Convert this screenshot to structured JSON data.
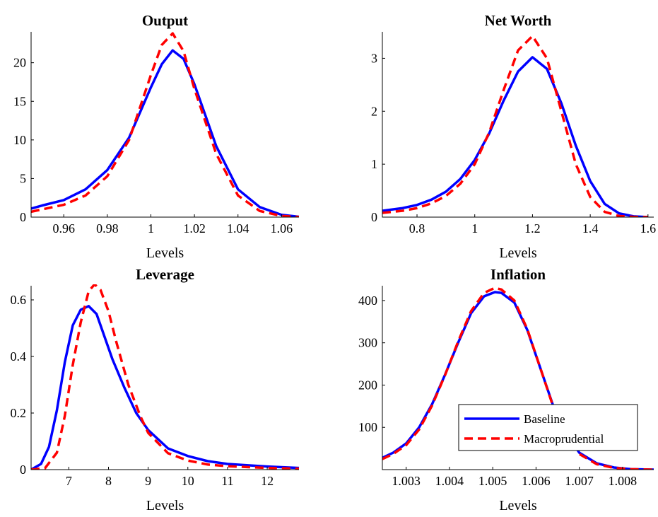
{
  "colors": {
    "baseline": "#0000FF",
    "macroprudential": "#FF0000"
  },
  "legend": {
    "entries": [
      "Baseline",
      "Macroprudential"
    ],
    "placement": "lower-right of Inflation panel"
  },
  "chart_data": [
    {
      "type": "line",
      "title": "Output",
      "xlabel": "Levels",
      "xlim": [
        0.945,
        1.068
      ],
      "ylim": [
        0,
        24
      ],
      "xticks": [
        0.96,
        0.98,
        1,
        1.02,
        1.04,
        1.06
      ],
      "xtick_labels": [
        "0.96",
        "0.98",
        "1",
        "1.02",
        "1.04",
        "1.06"
      ],
      "yticks": [
        0,
        5,
        10,
        15,
        20
      ],
      "ytick_labels": [
        "0",
        "5",
        "10",
        "15",
        "20"
      ],
      "series": [
        {
          "name": "Baseline",
          "x": [
            0.945,
            0.95,
            0.96,
            0.97,
            0.98,
            0.99,
            1.0,
            1.005,
            1.01,
            1.015,
            1.02,
            1.03,
            1.04,
            1.05,
            1.06,
            1.068
          ],
          "y": [
            1.1,
            1.5,
            2.2,
            3.6,
            6.1,
            10.3,
            16.8,
            19.8,
            21.6,
            20.5,
            17.2,
            9.2,
            3.6,
            1.3,
            0.3,
            0.05
          ]
        },
        {
          "name": "Macroprudential",
          "x": [
            0.945,
            0.95,
            0.96,
            0.97,
            0.98,
            0.99,
            1.0,
            1.005,
            1.01,
            1.015,
            1.02,
            1.03,
            1.04,
            1.05,
            1.06,
            1.068
          ],
          "y": [
            0.7,
            1.0,
            1.6,
            2.8,
            5.3,
            10.0,
            18.4,
            22.3,
            23.8,
            21.5,
            16.6,
            8.2,
            2.8,
            0.8,
            0.15,
            0.02
          ]
        }
      ]
    },
    {
      "type": "line",
      "title": "Net Worth",
      "xlabel": "Levels",
      "xlim": [
        0.68,
        1.62
      ],
      "ylim": [
        0,
        3.5
      ],
      "xticks": [
        0.8,
        1,
        1.2,
        1.4,
        1.6
      ],
      "xtick_labels": [
        "0.8",
        "1",
        "1.2",
        "1.4",
        "1.6"
      ],
      "yticks": [
        0,
        1,
        2,
        3
      ],
      "ytick_labels": [
        "0",
        "1",
        "2",
        "3"
      ],
      "series": [
        {
          "name": "Baseline",
          "x": [
            0.68,
            0.75,
            0.8,
            0.85,
            0.9,
            0.95,
            1.0,
            1.05,
            1.1,
            1.15,
            1.2,
            1.25,
            1.3,
            1.35,
            1.4,
            1.45,
            1.5,
            1.55,
            1.6
          ],
          "y": [
            0.12,
            0.17,
            0.23,
            0.33,
            0.48,
            0.72,
            1.08,
            1.58,
            2.2,
            2.75,
            3.02,
            2.8,
            2.15,
            1.35,
            0.68,
            0.25,
            0.07,
            0.015,
            0.0
          ]
        },
        {
          "name": "Macroprudential",
          "x": [
            0.68,
            0.75,
            0.8,
            0.85,
            0.9,
            0.95,
            1.0,
            1.05,
            1.1,
            1.15,
            1.2,
            1.25,
            1.3,
            1.35,
            1.4,
            1.45,
            1.5,
            1.55,
            1.6
          ],
          "y": [
            0.08,
            0.12,
            0.17,
            0.26,
            0.4,
            0.63,
            1.0,
            1.6,
            2.4,
            3.15,
            3.42,
            3.0,
            2.0,
            1.0,
            0.38,
            0.1,
            0.02,
            0.005,
            0.0
          ]
        }
      ]
    },
    {
      "type": "line",
      "title": "Leverage",
      "xlabel": "Levels",
      "xlim": [
        6.05,
        12.8
      ],
      "ylim": [
        0,
        0.65
      ],
      "xticks": [
        7,
        8,
        9,
        10,
        11,
        12
      ],
      "xtick_labels": [
        "7",
        "8",
        "9",
        "10",
        "11",
        "12"
      ],
      "yticks": [
        0,
        0.2,
        0.4,
        0.6
      ],
      "ytick_labels": [
        "0",
        "0.2",
        "0.4",
        "0.6"
      ],
      "series": [
        {
          "name": "Baseline",
          "x": [
            6.05,
            6.3,
            6.5,
            6.7,
            6.9,
            7.1,
            7.3,
            7.5,
            7.7,
            7.9,
            8.1,
            8.4,
            8.7,
            9.0,
            9.5,
            10.0,
            10.5,
            11.0,
            12.0,
            12.8
          ],
          "y": [
            0.0,
            0.02,
            0.08,
            0.21,
            0.38,
            0.51,
            0.565,
            0.578,
            0.55,
            0.47,
            0.39,
            0.29,
            0.2,
            0.14,
            0.075,
            0.048,
            0.03,
            0.02,
            0.011,
            0.006
          ]
        },
        {
          "name": "Macroprudential",
          "x": [
            6.05,
            6.4,
            6.7,
            6.9,
            7.1,
            7.3,
            7.5,
            7.65,
            7.8,
            8.0,
            8.2,
            8.5,
            8.8,
            9.0,
            9.5,
            10.0,
            10.5,
            11.0,
            12.0,
            12.8
          ],
          "y": [
            0.0,
            0.005,
            0.06,
            0.19,
            0.37,
            0.52,
            0.63,
            0.655,
            0.635,
            0.56,
            0.45,
            0.3,
            0.19,
            0.13,
            0.058,
            0.032,
            0.018,
            0.012,
            0.006,
            0.003
          ]
        }
      ]
    },
    {
      "type": "line",
      "title": "Inflation",
      "xlabel": "Levels",
      "xlim": [
        1.00245,
        1.00872
      ],
      "ylim": [
        0,
        435
      ],
      "xticks": [
        1.003,
        1.004,
        1.005,
        1.006,
        1.007,
        1.008
      ],
      "xtick_labels": [
        "1.003",
        "1.004",
        "1.005",
        "1.006",
        "1.007",
        "1.008"
      ],
      "yticks": [
        100,
        200,
        300,
        400
      ],
      "ytick_labels": [
        "100",
        "200",
        "300",
        "400"
      ],
      "series": [
        {
          "name": "Baseline",
          "x": [
            1.00245,
            1.0027,
            1.003,
            1.0033,
            1.0036,
            1.0039,
            1.0042,
            1.0045,
            1.0048,
            1.00505,
            1.0052,
            1.0055,
            1.0058,
            1.0061,
            1.0064,
            1.0067,
            1.007,
            1.0074,
            1.0078,
            1.0082,
            1.00872
          ],
          "y": [
            28,
            40,
            62,
            100,
            155,
            225,
            300,
            370,
            410,
            420,
            418,
            395,
            330,
            240,
            150,
            85,
            40,
            15,
            5,
            1,
            0
          ]
        },
        {
          "name": "Macroprudential",
          "x": [
            1.00245,
            1.0027,
            1.003,
            1.0033,
            1.0036,
            1.0039,
            1.0042,
            1.0045,
            1.0048,
            1.00505,
            1.0052,
            1.0055,
            1.0058,
            1.0061,
            1.0064,
            1.0067,
            1.007,
            1.0074,
            1.0078,
            1.0082,
            1.00872
          ],
          "y": [
            25,
            37,
            58,
            95,
            152,
            224,
            303,
            375,
            418,
            430,
            426,
            400,
            332,
            240,
            148,
            82,
            37,
            13,
            4,
            1,
            0
          ]
        }
      ]
    }
  ]
}
